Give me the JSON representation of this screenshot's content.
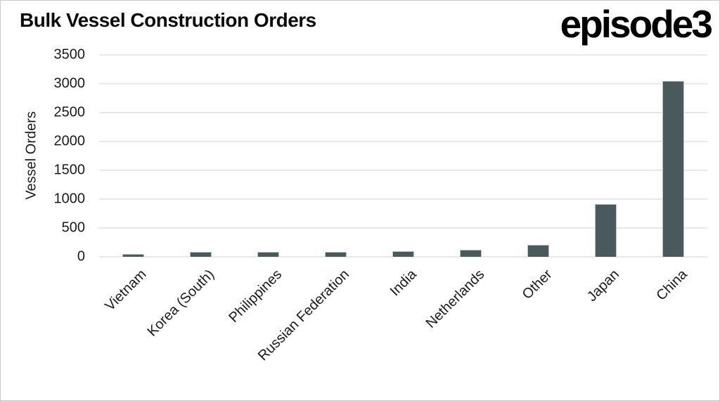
{
  "branding": {
    "logo_text": "episode3"
  },
  "chart_data": {
    "type": "bar",
    "title": "Bulk Vessel Construction Orders",
    "xlabel": "",
    "ylabel": "Vessel Orders",
    "categories": [
      "Vietnam",
      "Korea (South)",
      "Philippines",
      "Russian Federation",
      "India",
      "Netherlands",
      "Other",
      "Japan",
      "China"
    ],
    "values": [
      50,
      80,
      80,
      80,
      100,
      125,
      210,
      910,
      3050
    ],
    "ylim": [
      0,
      3500
    ],
    "yticks": [
      0,
      500,
      1000,
      1500,
      2000,
      2500,
      3000,
      3500
    ],
    "grid": "horizontal",
    "legend_position": "none",
    "bar_color": "#4a5a5c",
    "bar_border_color": "#bcc6c6",
    "gridline_color": "#e8e8e8",
    "text_color": "#1a1a1a"
  }
}
